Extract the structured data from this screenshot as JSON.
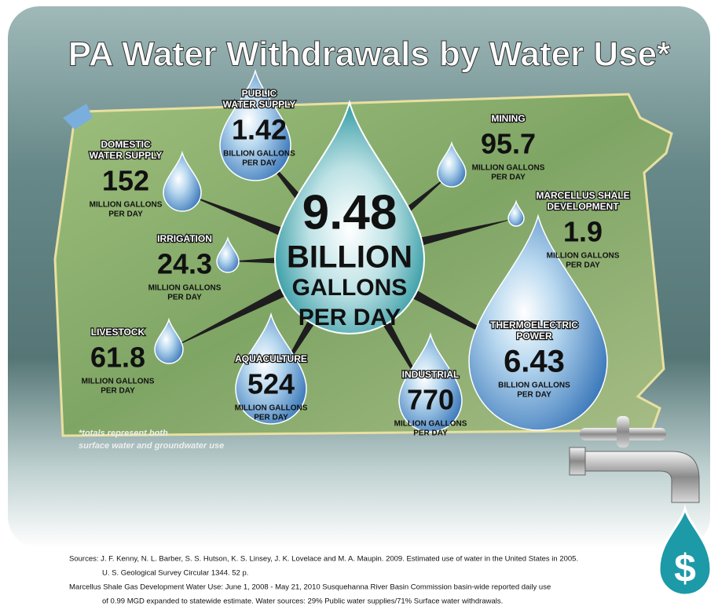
{
  "header": {
    "title": "PA Water Withdrawals by Water Use*"
  },
  "total": {
    "value": "9.48",
    "unit_lines": [
      "BILLION",
      "GALLONS",
      "PER DAY"
    ]
  },
  "nodes": [
    {
      "label_lines": [
        "PUBLIC",
        "WATER SUPPLY"
      ],
      "value": "1.42",
      "unit_lines": [
        "BILLION GALLONS",
        "PER DAY"
      ]
    },
    {
      "label_lines": [
        "DOMESTIC",
        "WATER SUPPLY"
      ],
      "value": "152",
      "unit_lines": [
        "MILLION GALLONS",
        "PER DAY"
      ]
    },
    {
      "label_lines": [
        "IRRIGATION"
      ],
      "value": "24.3",
      "unit_lines": [
        "MILLION GALLONS",
        "PER DAY"
      ]
    },
    {
      "label_lines": [
        "LIVESTOCK"
      ],
      "value": "61.8",
      "unit_lines": [
        "MILLION GALLONS",
        "PER DAY"
      ]
    },
    {
      "label_lines": [
        "AQUACULTURE"
      ],
      "value": "524",
      "unit_lines": [
        "MILLION GALLONS",
        "PER DAY"
      ]
    },
    {
      "label_lines": [
        "INDUSTRIAL"
      ],
      "value": "770",
      "unit_lines": [
        "MILLION GALLONS",
        "PER DAY"
      ]
    },
    {
      "label_lines": [
        "THERMOELECTRIC",
        "POWER"
      ],
      "value": "6.43",
      "unit_lines": [
        "BILLION GALLONS",
        "PER DAY"
      ]
    },
    {
      "label_lines": [
        "MARCELLUS SHALE",
        "DEVELOPMENT"
      ],
      "value": "1.9",
      "unit_lines": [
        "MILLION GALLONS",
        "PER DAY"
      ]
    },
    {
      "label_lines": [
        "MINING"
      ],
      "value": "95.7",
      "unit_lines": [
        "MILLION GALLONS",
        "PER DAY"
      ]
    }
  ],
  "footnote": [
    "*totals represent both",
    "surface water and groundwater use"
  ],
  "sources": [
    "Sources: J. F. Kenny, N. L. Barber, S. S. Hutson, K. S. Linsey, J. K. Lovelace and M. A. Maupin. 2009. Estimated use of water in the United States in 2005.",
    "U. S. Geological Survey Circular 1344. 52 p.",
    "Marcellus Shale Gas Development Water Use: June 1, 2008 - May 21, 2010 Susquehanna River Basin Commission basin-wide reported daily use",
    "of 0.99 MGD expanded to statewide estimate. Water sources: 29% Public water supplies/71% Surface water withdrawals."
  ],
  "badge": "$"
}
